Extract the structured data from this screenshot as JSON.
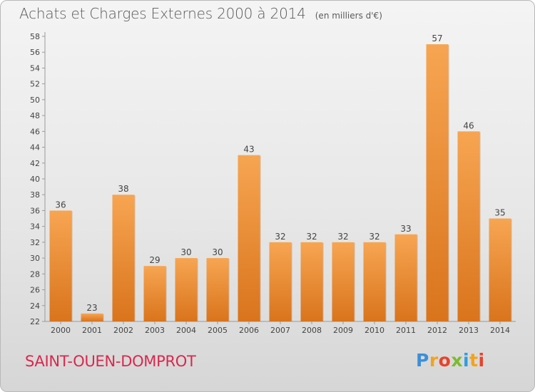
{
  "chart_data": {
    "type": "bar",
    "title": "Achats et Charges Externes 2000 à 2014",
    "subtitle": "(en milliers d'€)",
    "categories": [
      "2000",
      "2001",
      "2002",
      "2003",
      "2004",
      "2005",
      "2006",
      "2007",
      "2008",
      "2009",
      "2010",
      "2011",
      "2012",
      "2013",
      "2014"
    ],
    "values": [
      36,
      23,
      38,
      29,
      30,
      30,
      43,
      32,
      32,
      32,
      32,
      33,
      57,
      46,
      35
    ],
    "ylim": [
      22,
      58
    ],
    "yticks": [
      22,
      24,
      26,
      28,
      30,
      32,
      34,
      36,
      38,
      40,
      42,
      44,
      46,
      48,
      50,
      52,
      54,
      56,
      58
    ],
    "grid": false,
    "bar_color_top": "#f7a552",
    "bar_color_bottom": "#d9741c"
  },
  "commune": "SAINT-OUEN-DOMPROT",
  "logo": {
    "letters": [
      "P",
      "r",
      "o",
      "x",
      "i",
      "t",
      "i"
    ],
    "colors": [
      "#3c8fd8",
      "#f2a31c",
      "#e8432b",
      "#7cbb2f",
      "#2e9ee0",
      "#f2a31c",
      "#e8432b"
    ]
  }
}
